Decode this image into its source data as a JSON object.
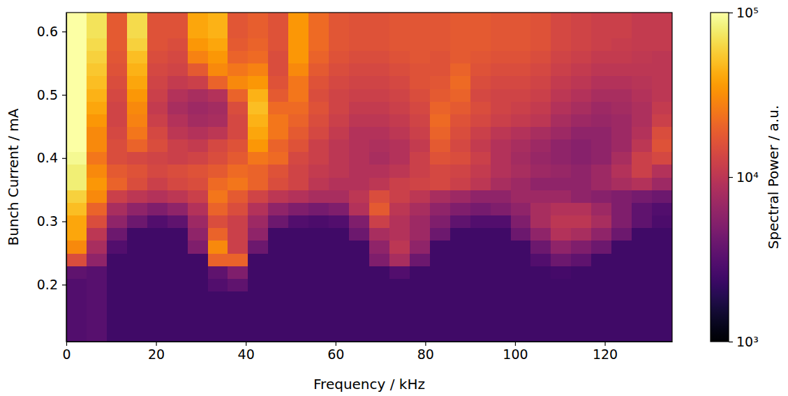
{
  "chart_data": {
    "type": "heatmap",
    "x_label": "Frequency / kHz",
    "y_label": "Bunch Current / mA",
    "xlim": [
      0,
      135
    ],
    "ylim": [
      0.11,
      0.63
    ],
    "xticks": [
      0,
      20,
      40,
      60,
      80,
      100,
      120
    ],
    "yticks": [
      0.2,
      0.3,
      0.4,
      0.5,
      0.6
    ],
    "x": [
      2.25,
      6.75,
      11.25,
      15.75,
      20.25,
      24.75,
      29.25,
      33.75,
      38.25,
      42.75,
      47.25,
      51.75,
      56.25,
      60.75,
      65.25,
      69.75,
      74.25,
      78.75,
      83.25,
      87.75,
      92.25,
      96.75,
      101.25,
      105.75,
      110.25,
      114.75,
      119.25,
      123.75,
      128.25,
      132.75
    ],
    "y": [
      0.12,
      0.14,
      0.16,
      0.18,
      0.2,
      0.22,
      0.24,
      0.26,
      0.28,
      0.3,
      0.32,
      0.34,
      0.36,
      0.38,
      0.4,
      0.42,
      0.44,
      0.46,
      0.48,
      0.5,
      0.52,
      0.54,
      0.56,
      0.58,
      0.6,
      0.62
    ],
    "z": [
      [
        3000,
        3200,
        2500,
        2500,
        2500,
        2500,
        2500,
        2500,
        2500,
        2500,
        2500,
        2500,
        2500,
        2500,
        2500,
        2500,
        2500,
        2500,
        2500,
        2500,
        2500,
        2500,
        2500,
        2500,
        2500,
        2500,
        2500,
        2500,
        2500,
        2500
      ],
      [
        3000,
        3200,
        2500,
        2500,
        2500,
        2500,
        2500,
        2500,
        2500,
        2500,
        2500,
        2500,
        2500,
        2500,
        2500,
        2500,
        2500,
        2500,
        2500,
        2500,
        2500,
        2500,
        2500,
        2500,
        2500,
        2500,
        2500,
        2500,
        2500,
        2500
      ],
      [
        3000,
        3200,
        2500,
        2500,
        2500,
        2500,
        2500,
        2500,
        2500,
        2500,
        2500,
        2500,
        2500,
        2500,
        2500,
        2500,
        2500,
        2500,
        2500,
        2500,
        2500,
        2500,
        2500,
        2500,
        2500,
        2500,
        2500,
        2500,
        2500,
        2500
      ],
      [
        3000,
        3200,
        2500,
        2500,
        2500,
        2500,
        2500,
        2500,
        2500,
        2500,
        2500,
        2500,
        2500,
        2500,
        2500,
        2500,
        2500,
        2500,
        2500,
        2500,
        2500,
        2500,
        2500,
        2500,
        2500,
        2500,
        2500,
        2500,
        2500,
        2500
      ],
      [
        3000,
        3200,
        2500,
        2500,
        2500,
        2500,
        2500,
        3000,
        3500,
        2500,
        2500,
        2500,
        2500,
        2500,
        2500,
        2500,
        2500,
        2500,
        2500,
        2500,
        2500,
        2500,
        2500,
        2500,
        2500,
        2500,
        2500,
        2500,
        2500,
        2500
      ],
      [
        3500,
        3200,
        2500,
        2500,
        2500,
        2500,
        2500,
        3500,
        5000,
        2500,
        2500,
        2500,
        2500,
        2500,
        2500,
        2500,
        3000,
        2500,
        2500,
        2500,
        2500,
        2500,
        2500,
        2500,
        2600,
        2500,
        2500,
        2500,
        2500,
        2500
      ],
      [
        15000,
        6000,
        2500,
        2500,
        2500,
        2500,
        2500,
        20000,
        20000,
        2500,
        2500,
        2500,
        2500,
        2500,
        2500,
        5000,
        8000,
        4000,
        2500,
        2500,
        2500,
        2500,
        2500,
        3000,
        4000,
        3500,
        2500,
        2500,
        2500,
        2500
      ],
      [
        30000,
        8000,
        3000,
        2500,
        2500,
        2500,
        5000,
        30000,
        12000,
        4000,
        2500,
        2500,
        2500,
        2500,
        2500,
        6000,
        10000,
        6000,
        2500,
        2500,
        2500,
        2500,
        2500,
        4000,
        6000,
        5000,
        4000,
        2500,
        2500,
        2500
      ],
      [
        40000,
        10000,
        4000,
        2500,
        2500,
        2500,
        6000,
        20000,
        12000,
        6000,
        2500,
        2500,
        2500,
        2500,
        4000,
        8000,
        9000,
        7000,
        4000,
        2500,
        2500,
        2500,
        4000,
        6000,
        9000,
        8000,
        6000,
        4000,
        2500,
        2500
      ],
      [
        40000,
        15000,
        6000,
        4000,
        3000,
        3500,
        7000,
        15000,
        12000,
        7000,
        4000,
        3000,
        2800,
        3000,
        5000,
        12000,
        9000,
        7000,
        5000,
        3500,
        3000,
        3000,
        5000,
        8000,
        10000,
        10000,
        8000,
        5000,
        3500,
        2800
      ],
      [
        50000,
        20000,
        8000,
        6000,
        5000,
        6000,
        9000,
        20000,
        15000,
        9000,
        6000,
        5000,
        4500,
        5000,
        9000,
        18000,
        10000,
        8000,
        6000,
        5000,
        4500,
        5000,
        6000,
        8000,
        9000,
        9000,
        7000,
        5000,
        3500,
        3000
      ],
      [
        60000,
        30000,
        12000,
        10000,
        9000,
        10000,
        12000,
        25000,
        18000,
        13000,
        10000,
        9000,
        8000,
        8000,
        10000,
        15000,
        12000,
        10000,
        8000,
        7000,
        6000,
        6000,
        7000,
        7000,
        7000,
        6000,
        5500,
        5000,
        4500,
        4000
      ],
      [
        80000,
        35000,
        20000,
        15000,
        12000,
        14000,
        15000,
        22000,
        25000,
        20000,
        15000,
        13000,
        10000,
        9000,
        9000,
        10000,
        12000,
        13000,
        14000,
        12000,
        10000,
        8000,
        7000,
        6000,
        6000,
        6000,
        7000,
        8000,
        9000,
        7000
      ],
      [
        80000,
        30000,
        18000,
        16000,
        14000,
        15000,
        16000,
        18000,
        22000,
        20000,
        16000,
        13000,
        11000,
        10000,
        9000,
        9000,
        10000,
        12000,
        14000,
        13000,
        11000,
        9000,
        8000,
        7000,
        6500,
        6000,
        7000,
        9000,
        12000,
        9000
      ],
      [
        90000,
        25000,
        15000,
        14000,
        13000,
        12000,
        13000,
        15000,
        18000,
        25000,
        22000,
        14000,
        12000,
        10000,
        9000,
        8000,
        9000,
        12000,
        16000,
        15000,
        12000,
        9000,
        7500,
        6500,
        6000,
        5500,
        6000,
        8000,
        12000,
        14000
      ],
      [
        100000,
        30000,
        15000,
        20000,
        15000,
        12000,
        11000,
        14000,
        16000,
        35000,
        20000,
        16000,
        12000,
        10000,
        9000,
        8500,
        9000,
        11000,
        18000,
        14000,
        11000,
        9000,
        8000,
        7000,
        6000,
        5500,
        6000,
        7000,
        10000,
        16000
      ],
      [
        100000,
        30000,
        14000,
        25000,
        14000,
        10000,
        9000,
        10000,
        14000,
        40000,
        25000,
        18000,
        14000,
        11000,
        9000,
        9000,
        10000,
        12000,
        20000,
        15000,
        12000,
        10000,
        9000,
        8000,
        7000,
        6000,
        6000,
        7000,
        9000,
        15000
      ],
      [
        100000,
        35000,
        13000,
        28000,
        12000,
        9000,
        7500,
        8000,
        14000,
        45000,
        25000,
        20000,
        15000,
        12000,
        10000,
        10000,
        11000,
        13000,
        22000,
        16000,
        14000,
        12000,
        11000,
        10000,
        8000,
        7000,
        6500,
        7000,
        8500,
        12000
      ],
      [
        100000,
        40000,
        13000,
        30000,
        11000,
        8000,
        7000,
        7500,
        15000,
        50000,
        22000,
        22000,
        16000,
        13000,
        11000,
        11000,
        12000,
        14000,
        20000,
        18000,
        15000,
        13000,
        12000,
        11000,
        9000,
        8000,
        7000,
        7500,
        8500,
        11000
      ],
      [
        100000,
        45000,
        14000,
        35000,
        12000,
        9000,
        8000,
        9000,
        20000,
        45000,
        18000,
        25000,
        15000,
        13000,
        12000,
        12000,
        13000,
        15000,
        18000,
        20000,
        14000,
        13000,
        13000,
        12000,
        10000,
        9000,
        8000,
        8000,
        9000,
        10000
      ],
      [
        100000,
        50000,
        15000,
        40000,
        13000,
        11000,
        12000,
        20000,
        30000,
        35000,
        16000,
        25000,
        16000,
        14000,
        13000,
        13000,
        14000,
        16000,
        17000,
        22000,
        15000,
        14000,
        14000,
        13000,
        11000,
        10000,
        9000,
        9000,
        9500,
        10000
      ],
      [
        100000,
        55000,
        16000,
        45000,
        14000,
        13000,
        18000,
        30000,
        25000,
        28000,
        15000,
        30000,
        18000,
        15000,
        14000,
        14000,
        15000,
        16000,
        16000,
        20000,
        16000,
        15000,
        15000,
        14000,
        12000,
        11000,
        10000,
        10000,
        10000,
        10000
      ],
      [
        100000,
        60000,
        17000,
        50000,
        15000,
        14000,
        28000,
        35000,
        20000,
        22000,
        15000,
        35000,
        20000,
        16000,
        15000,
        15000,
        16000,
        17000,
        16000,
        18000,
        17000,
        16000,
        16000,
        15000,
        13000,
        12000,
        11000,
        11000,
        10500,
        10000
      ],
      [
        100000,
        65000,
        18000,
        60000,
        16000,
        15000,
        35000,
        40000,
        18000,
        20000,
        16000,
        35000,
        22000,
        17000,
        16000,
        16000,
        17000,
        17000,
        17000,
        18000,
        18000,
        17000,
        17000,
        16000,
        14000,
        13000,
        12000,
        11500,
        11000,
        11000
      ],
      [
        100000,
        70000,
        18000,
        65000,
        16000,
        16000,
        40000,
        45000,
        17000,
        19000,
        16000,
        35000,
        22000,
        17000,
        16000,
        16000,
        17000,
        17000,
        17000,
        18000,
        18000,
        17000,
        17000,
        16000,
        14000,
        13000,
        12000,
        12000,
        11000,
        11000
      ],
      [
        100000,
        70000,
        18000,
        65000,
        16000,
        16000,
        40000,
        45000,
        17000,
        19000,
        16000,
        35000,
        22000,
        17000,
        16000,
        16000,
        17000,
        17000,
        17000,
        18000,
        18000,
        17000,
        17000,
        16000,
        14000,
        13000,
        12000,
        12000,
        11000,
        11000
      ]
    ],
    "colorbar": {
      "label": "Spectral Power / a.u.",
      "range": [
        1000,
        100000
      ],
      "ticks": [
        {
          "value": 1000,
          "label": "10³"
        },
        {
          "value": 10000,
          "label": "10⁴"
        },
        {
          "value": 100000,
          "label": "10⁵"
        }
      ],
      "log": true
    }
  }
}
